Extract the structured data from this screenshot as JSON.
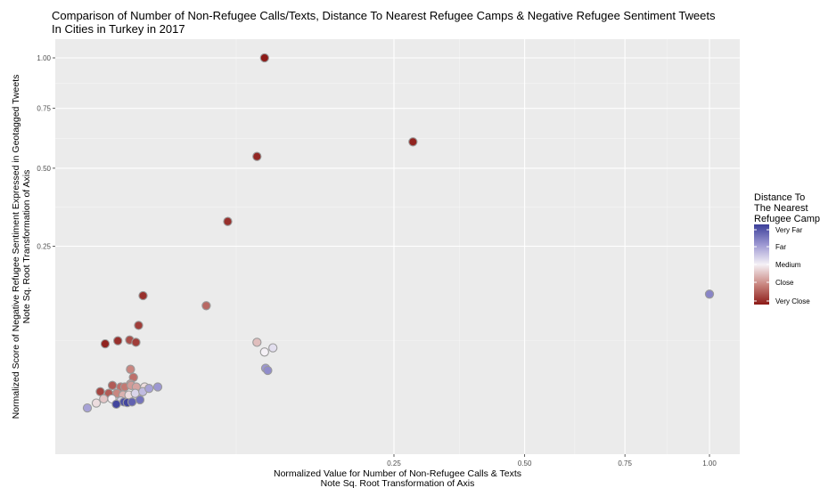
{
  "chart_data": {
    "type": "scatter",
    "title": [
      "Comparison of Number of Non-Refugee Calls/Texts, Distance To Nearest Refugee Camps & Negative Refugee Sentiment Tweets",
      "In Cities in Turkey in 2017"
    ],
    "xlabel": [
      "Normalized Value for Number of Non-Refugee Calls & Texts",
      "Note Sq. Root Transformation of Axis"
    ],
    "ylabel": [
      "Normalized Score of Negative Refugee Sentiment Expressed in Geotagged Tweets",
      "Note Sq. Root Transformation of Axis"
    ],
    "x_scale": "sqrt",
    "y_scale": "sqrt",
    "xlim": [
      0,
      1
    ],
    "ylim": [
      0,
      1
    ],
    "x_ticks": [
      0.25,
      0.5,
      0.75,
      1.0
    ],
    "x_tick_labels": [
      "0.25",
      "0.50",
      "0.75",
      "1.00"
    ],
    "y_ticks": [
      0.25,
      0.5,
      0.75,
      1.0
    ],
    "y_tick_labels": [
      "0.25",
      "0.50",
      "0.75",
      "1.00"
    ],
    "grid": true,
    "legend": {
      "title": [
        "Distance To",
        "The Nearest",
        "Refugee Camp"
      ],
      "placement": "right",
      "labels": [
        "Very Far",
        "Far",
        "Medium",
        "Close",
        "Very Close"
      ],
      "colors": [
        "#3b3f99",
        "#9c97d2",
        "#f5f1f6",
        "#c98680",
        "#8c1a17"
      ]
    },
    "points": [
      {
        "x": 0.087,
        "y": 1.0,
        "distance": 0.0
      },
      {
        "x": 0.281,
        "y": 0.604,
        "distance": 0.02
      },
      {
        "x": 0.08,
        "y": 0.545,
        "distance": 0.03
      },
      {
        "x": 0.056,
        "y": 0.32,
        "distance": 0.05
      },
      {
        "x": 1.0,
        "y": 0.139,
        "distance": 0.8
      },
      {
        "x": 0.041,
        "y": 0.117,
        "distance": 0.18
      },
      {
        "x": 0.0105,
        "y": 0.136,
        "distance": 0.05
      },
      {
        "x": 0.0091,
        "y": 0.084,
        "distance": 0.08
      },
      {
        "x": 0.0066,
        "y": 0.063,
        "distance": 0.12
      },
      {
        "x": 0.0039,
        "y": 0.062,
        "distance": 0.05
      },
      {
        "x": 0.0018,
        "y": 0.058,
        "distance": 0.02
      },
      {
        "x": 0.0083,
        "y": 0.06,
        "distance": 0.08
      },
      {
        "x": 0.08,
        "y": 0.06,
        "distance": 0.38
      },
      {
        "x": 0.095,
        "y": 0.053,
        "distance": 0.55
      },
      {
        "x": 0.087,
        "y": 0.048,
        "distance": 0.5
      },
      {
        "x": 0.088,
        "y": 0.031,
        "distance": 0.75
      },
      {
        "x": 0.09,
        "y": 0.029,
        "distance": 0.78
      },
      {
        "x": 0.0068,
        "y": 0.03,
        "distance": 0.25
      },
      {
        "x": 0.0076,
        "y": 0.023,
        "distance": 0.2
      },
      {
        "x": 0.0068,
        "y": 0.018,
        "distance": 0.3
      },
      {
        "x": 0.0029,
        "y": 0.017,
        "distance": 0.15
      },
      {
        "x": 0.0045,
        "y": 0.016,
        "distance": 0.2
      },
      {
        "x": 0.0054,
        "y": 0.016,
        "distance": 0.22
      },
      {
        "x": 0.007,
        "y": 0.017,
        "distance": 0.3
      },
      {
        "x": 0.0084,
        "y": 0.016,
        "distance": 0.32
      },
      {
        "x": 0.011,
        "y": 0.016,
        "distance": 0.45
      },
      {
        "x": 0.0012,
        "y": 0.013,
        "distance": 0.1
      },
      {
        "x": 0.0023,
        "y": 0.012,
        "distance": 0.15
      },
      {
        "x": 0.0037,
        "y": 0.012,
        "distance": 0.25
      },
      {
        "x": 0.005,
        "y": 0.011,
        "distance": 0.35
      },
      {
        "x": 0.0064,
        "y": 0.011,
        "distance": 0.45
      },
      {
        "x": 0.0081,
        "y": 0.012,
        "distance": 0.58
      },
      {
        "x": 0.0104,
        "y": 0.013,
        "distance": 0.65
      },
      {
        "x": 0.0125,
        "y": 0.015,
        "distance": 0.72
      },
      {
        "x": 0.0158,
        "y": 0.016,
        "distance": 0.75
      },
      {
        "x": 0.0016,
        "y": 0.009,
        "distance": 0.4
      },
      {
        "x": 0.0028,
        "y": 0.009,
        "distance": 0.5
      },
      {
        "x": 0.0045,
        "y": 0.008,
        "distance": 0.6
      },
      {
        "x": 0.0052,
        "y": 0.0075,
        "distance": 0.95
      },
      {
        "x": 0.006,
        "y": 0.0072,
        "distance": 0.98
      },
      {
        "x": 0.0072,
        "y": 0.0075,
        "distance": 0.9
      },
      {
        "x": 0.0095,
        "y": 0.0085,
        "distance": 0.85
      },
      {
        "x": 0.0008,
        "y": 0.007,
        "distance": 0.45
      },
      {
        "x": 0.0002,
        "y": 0.005,
        "distance": 0.72
      },
      {
        "x": 0.0036,
        "y": 0.0065,
        "distance": 0.98
      }
    ]
  }
}
